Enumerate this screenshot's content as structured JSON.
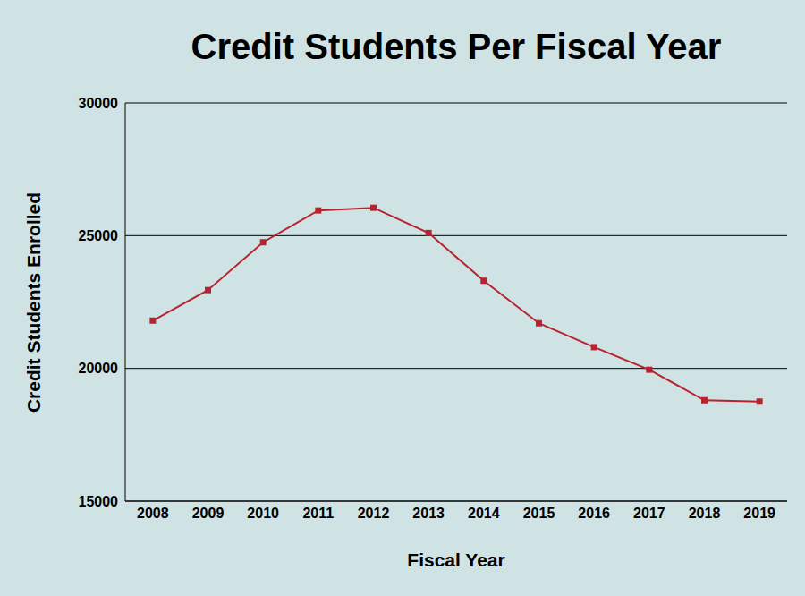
{
  "chart_data": {
    "type": "line",
    "title": "Credit Students Per Fiscal Year",
    "x_label": "Fiscal Year",
    "y_label": "Credit Students Enrolled",
    "categories": [
      "2008",
      "2009",
      "2010",
      "2011",
      "2012",
      "2013",
      "2014",
      "2015",
      "2016",
      "2017",
      "2018",
      "2019"
    ],
    "values": [
      21800,
      22950,
      24750,
      25950,
      26050,
      25100,
      23300,
      21700,
      20800,
      19950,
      18800,
      18750
    ],
    "color": "#b8232f",
    "marker": "square",
    "ylim": [
      15000,
      30000
    ],
    "yticks": [
      15000,
      20000,
      25000,
      30000
    ],
    "grid": true
  }
}
